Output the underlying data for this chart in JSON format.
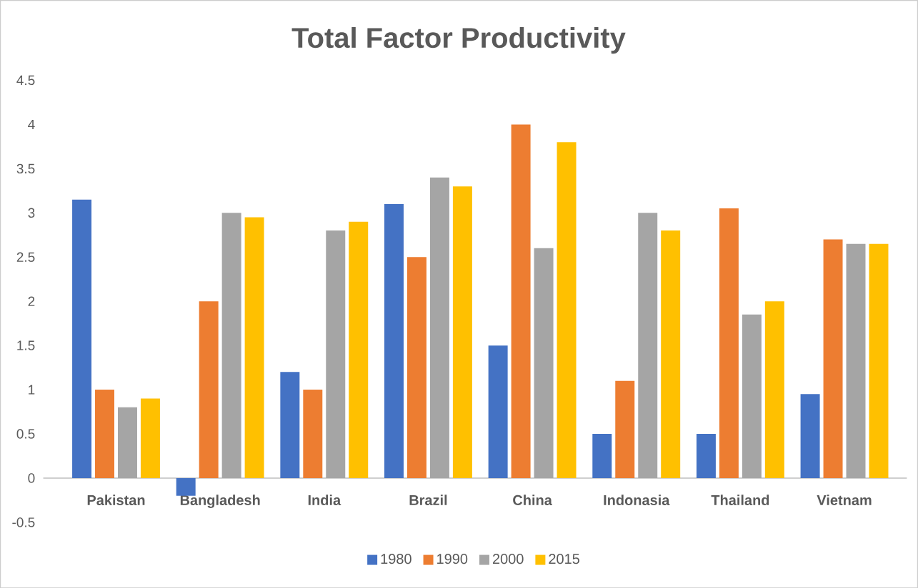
{
  "chart_data": {
    "type": "bar",
    "title": "Total Factor Productivity",
    "categories": [
      "Pakistan",
      "Bangladesh",
      "India",
      "Brazil",
      "China",
      "Indonasia",
      "Thailand",
      "Vietnam"
    ],
    "series": [
      {
        "name": "1980",
        "color": "#4472c4",
        "values": [
          3.15,
          -0.2,
          1.2,
          3.1,
          1.5,
          0.5,
          0.5,
          0.95
        ]
      },
      {
        "name": "1990",
        "color": "#ed7d31",
        "values": [
          1.0,
          2.0,
          1.0,
          2.5,
          4.0,
          1.1,
          3.05,
          2.7
        ]
      },
      {
        "name": "2000",
        "color": "#a5a5a5",
        "values": [
          0.8,
          3.0,
          2.8,
          3.4,
          2.6,
          3.0,
          1.85,
          2.65
        ]
      },
      {
        "name": "2015",
        "color": "#ffc000",
        "values": [
          0.9,
          2.95,
          2.9,
          3.3,
          3.8,
          2.8,
          2.0,
          2.65
        ]
      }
    ],
    "ylim": [
      -0.5,
      4.5
    ],
    "yticks": [
      -0.5,
      0,
      0.5,
      1,
      1.5,
      2,
      2.5,
      3,
      3.5,
      4,
      4.5
    ],
    "legend": "bottom"
  }
}
